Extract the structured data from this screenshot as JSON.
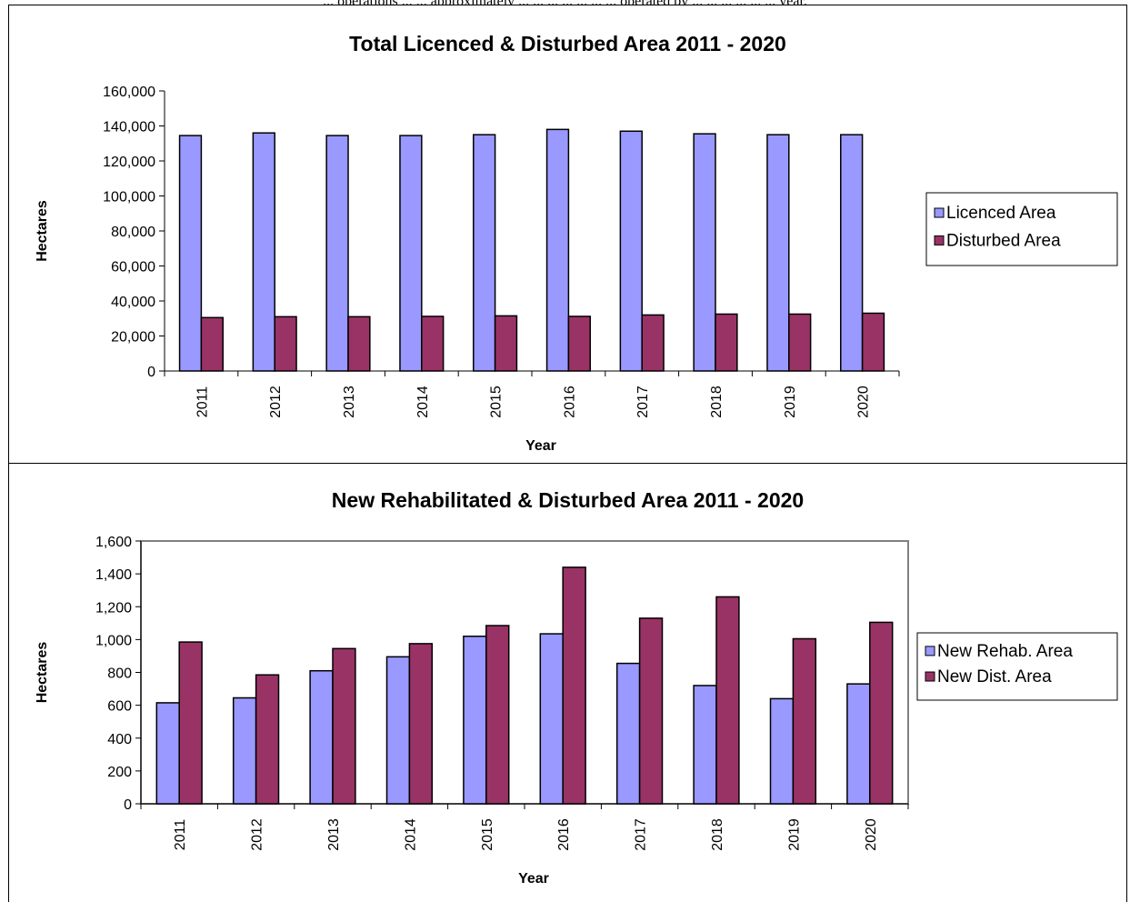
{
  "page": {
    "top_caption": "... operations ... ... approximately ... ... ... ... ... ... ... operated by ... ... ... ... ... ... year."
  },
  "colors": {
    "series_a": "#9999ff",
    "series_b": "#993366",
    "plot_frame": "#808080"
  },
  "chart_data": [
    {
      "type": "bar",
      "title": "Total Licenced & Disturbed Area 2011 - 2020",
      "xlabel": "Year",
      "ylabel": "Hectares",
      "ylim": [
        0,
        160000
      ],
      "yticks": [
        "0",
        "20,000",
        "40,000",
        "60,000",
        "80,000",
        "100,000",
        "120,000",
        "140,000",
        "160,000"
      ],
      "categories": [
        "2011",
        "2012",
        "2013",
        "2014",
        "2015",
        "2016",
        "2017",
        "2018",
        "2019",
        "2020"
      ],
      "series": [
        {
          "name": "Licenced Area",
          "values": [
            134500,
            136000,
            134500,
            134500,
            135000,
            138000,
            137000,
            135500,
            135000,
            135000
          ]
        },
        {
          "name": "Disturbed Area",
          "values": [
            30500,
            31000,
            31000,
            31200,
            31500,
            31200,
            32000,
            32500,
            32500,
            33000
          ]
        }
      ],
      "legend": "right",
      "plot_frame": false
    },
    {
      "type": "bar",
      "title": "New Rehabilitated & Disturbed Area 2011 - 2020",
      "xlabel": "Year",
      "ylabel": "Hectares",
      "ylim": [
        0,
        1600
      ],
      "yticks": [
        "0",
        "200",
        "400",
        "600",
        "800",
        "1,000",
        "1,200",
        "1,400",
        "1,600"
      ],
      "categories": [
        "2011",
        "2012",
        "2013",
        "2014",
        "2015",
        "2016",
        "2017",
        "2018",
        "2019",
        "2020"
      ],
      "series": [
        {
          "name": "New Rehab. Area",
          "values": [
            615,
            645,
            810,
            895,
            1020,
            1035,
            855,
            720,
            640,
            730
          ]
        },
        {
          "name": "New Dist. Area",
          "values": [
            985,
            785,
            945,
            975,
            1085,
            1440,
            1130,
            1260,
            1005,
            1105
          ]
        }
      ],
      "legend": "right",
      "plot_frame": true
    }
  ]
}
